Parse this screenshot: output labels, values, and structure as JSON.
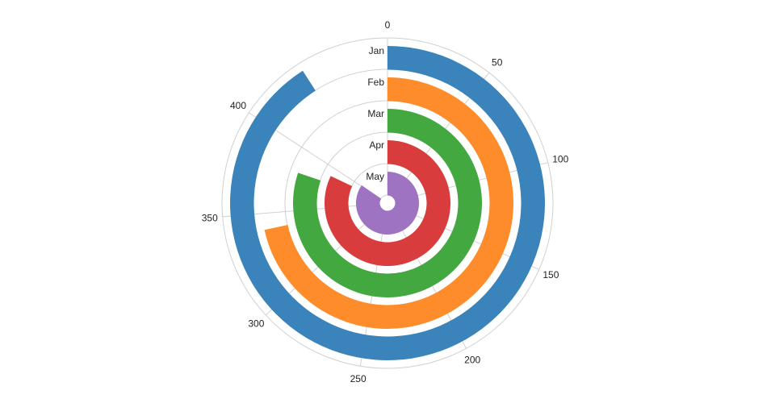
{
  "chart_data": {
    "type": "radial-bar",
    "title": "",
    "categories": [
      "Jan",
      "Feb",
      "Mar",
      "Apr",
      "May"
    ],
    "values": [
      432,
      340,
      381,
      390,
      402
    ],
    "colors": [
      "#3a84bb",
      "#ff8c2a",
      "#44a840",
      "#d83c3c",
      "#9d73c2"
    ],
    "angular_axis": {
      "range": [
        0,
        475
      ],
      "direction": "clockwise",
      "start": "top",
      "ticks": [
        0,
        50,
        100,
        150,
        200,
        250,
        300,
        350,
        400
      ],
      "tick_labels": [
        "0",
        "50",
        "100",
        "150",
        "200",
        "250",
        "300",
        "350",
        "400"
      ]
    },
    "grid": true,
    "legend": "none"
  }
}
